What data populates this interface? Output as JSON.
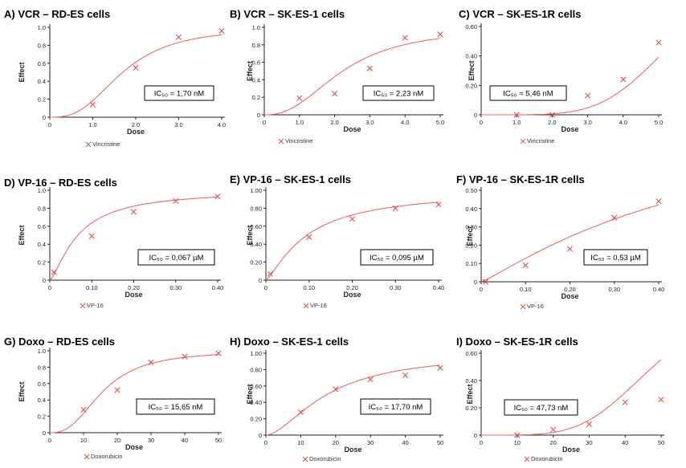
{
  "style": {
    "curve_color": "#e86a6a",
    "marker_color": "#e05050",
    "axis_color": "#222222"
  },
  "chart_data": [
    {
      "type": "scatter",
      "title": "A)   VCR – RD-ES cells",
      "xlabel": "Dose",
      "ylabel": "Effect",
      "xticks": [
        "0",
        "1.0",
        "2.0",
        "3.0",
        "4.0"
      ],
      "yticks": [
        "0",
        "0.2",
        "0.4",
        "0.6",
        "0.8",
        "1.0"
      ],
      "xlim": [
        0,
        4
      ],
      "ylim": [
        0,
        1
      ],
      "series": [
        {
          "name": "Vincristine",
          "x": [
            1,
            2,
            3,
            4
          ],
          "y": [
            0.14,
            0.55,
            0.89,
            0.96
          ],
          "curve": {
            "ic50": 1.7,
            "hill": 2.8,
            "top": 1
          }
        }
      ],
      "annotation": "IC₅₀ = 1,70 nM"
    },
    {
      "type": "scatter",
      "title": "B)   VCR – SK-ES-1 cells",
      "xlabel": "Dose",
      "ylabel": "Effect",
      "xticks": [
        "0",
        "1.0",
        "2.0",
        "3.0",
        "4.0",
        "5.0"
      ],
      "yticks": [
        "0",
        "0.2",
        "0.4",
        "0.6",
        "0.8",
        "1.0"
      ],
      "xlim": [
        0,
        5
      ],
      "ylim": [
        0,
        1
      ],
      "series": [
        {
          "name": "Vincristine",
          "x": [
            1,
            2,
            3,
            4,
            5
          ],
          "y": [
            0.19,
            0.24,
            0.53,
            0.88,
            0.92
          ],
          "curve": {
            "ic50": 2.23,
            "hill": 2.4,
            "top": 1
          }
        }
      ],
      "annotation": "IC₅₀ = 2,23 nM"
    },
    {
      "type": "scatter",
      "title": "C)   VCR – SK-ES-1R cells",
      "xlabel": "Dose",
      "ylabel": "Effect",
      "xticks": [
        "0",
        "1.0",
        "2.0",
        "3.0",
        "4.0",
        "5.0"
      ],
      "yticks": [
        "0",
        "0.20",
        "0.40",
        "0.60"
      ],
      "xlim": [
        0,
        5
      ],
      "ylim": [
        0,
        0.6
      ],
      "series": [
        {
          "name": "Vincristine",
          "x": [
            1,
            2,
            3,
            4,
            5
          ],
          "y": [
            0.0,
            0.0,
            0.13,
            0.24,
            0.49
          ],
          "curve": {
            "ic50": 5.46,
            "hill": 5.0,
            "top": 1
          }
        }
      ],
      "annotation": "IC₅₀ = 5,46 nM"
    },
    {
      "type": "scatter",
      "title": "D)   VP-16 – RD-ES cells",
      "xlabel": "Dose",
      "ylabel": "Effect",
      "xticks": [
        "0",
        "0.10",
        "0.20",
        "0.30",
        "0.40"
      ],
      "yticks": [
        "0",
        "0.2",
        "0.4",
        "0.6",
        "0.8",
        "1.0"
      ],
      "xlim": [
        0,
        0.4
      ],
      "ylim": [
        0,
        1
      ],
      "series": [
        {
          "name": "VP-16",
          "x": [
            0.01,
            0.1,
            0.2,
            0.3,
            0.4
          ],
          "y": [
            0.09,
            0.49,
            0.76,
            0.88,
            0.93
          ],
          "curve": {
            "ic50": 0.067,
            "hill": 1.4,
            "top": 1
          }
        }
      ],
      "annotation": "IC₅₀ = 0,067 µM"
    },
    {
      "type": "scatter",
      "title": "E)   VP-16 – SK-ES-1 cells",
      "xlabel": "Dose",
      "ylabel": "Effect",
      "xticks": [
        "0",
        "0.10",
        "0.20",
        "0.30",
        "0.40"
      ],
      "yticks": [
        "0",
        "0.20",
        "0.40",
        "0.60",
        "0.80",
        "1.00"
      ],
      "xlim": [
        0,
        0.4
      ],
      "ylim": [
        0,
        1
      ],
      "series": [
        {
          "name": "VP-16",
          "x": [
            0.01,
            0.1,
            0.2,
            0.3,
            0.4
          ],
          "y": [
            0.07,
            0.48,
            0.68,
            0.8,
            0.84
          ],
          "curve": {
            "ic50": 0.095,
            "hill": 1.3,
            "top": 1
          }
        }
      ],
      "annotation": "IC₅₀ = 0,095 µM"
    },
    {
      "type": "scatter",
      "title": "F)   VP-16 – SK-ES-1R cells",
      "xlabel": "Dose",
      "ylabel": "Effect",
      "xticks": [
        "0",
        "0.10",
        "0.20",
        "0.30",
        "0.40"
      ],
      "yticks": [
        "0",
        "0.10",
        "0.20",
        "0.30",
        "0.40",
        "0.50"
      ],
      "xlim": [
        0,
        0.4
      ],
      "ylim": [
        0,
        0.5
      ],
      "series": [
        {
          "name": "VP-16",
          "x": [
            0.01,
            0.1,
            0.2,
            0.3,
            0.4
          ],
          "y": [
            0.0,
            0.09,
            0.18,
            0.35,
            0.44
          ],
          "curve": {
            "ic50": 0.53,
            "hill": 1.15,
            "top": 1
          }
        }
      ],
      "annotation": "IC₅₀ = 0,53 µM"
    },
    {
      "type": "scatter",
      "title": "G)   Doxo – RD-ES cells",
      "xlabel": "Dose",
      "ylabel": "Effect",
      "xticks": [
        "0",
        "10",
        "20",
        "30",
        "40",
        "50"
      ],
      "yticks": [
        "0",
        "0.2",
        "0.4",
        "0.6",
        "0.8",
        "1.0"
      ],
      "xlim": [
        0,
        50
      ],
      "ylim": [
        0,
        1
      ],
      "series": [
        {
          "name": "Doxorubicin",
          "x": [
            10,
            20,
            30,
            40,
            50
          ],
          "y": [
            0.28,
            0.52,
            0.86,
            0.93,
            0.97
          ],
          "curve": {
            "ic50": 15.65,
            "hill": 2.6,
            "top": 1
          }
        }
      ],
      "annotation": "IC₅₀ = 15,65 nM"
    },
    {
      "type": "scatter",
      "title": "H)   Doxo – SK-ES-1 cells",
      "xlabel": "Dose",
      "ylabel": "Effect",
      "xticks": [
        "0",
        "10",
        "20",
        "30",
        "40",
        "50"
      ],
      "yticks": [
        "0",
        "0.20",
        "0.40",
        "0.60",
        "0.80",
        "1.00"
      ],
      "xlim": [
        0,
        50
      ],
      "ylim": [
        0,
        1
      ],
      "series": [
        {
          "name": "Doxorubicin",
          "x": [
            10,
            20,
            30,
            40,
            50
          ],
          "y": [
            0.28,
            0.56,
            0.68,
            0.73,
            0.82
          ],
          "curve": {
            "ic50": 17.7,
            "hill": 1.7,
            "top": 1
          }
        }
      ],
      "annotation": "IC₅₀ = 17,70 nM"
    },
    {
      "type": "scatter",
      "title": "I)   Doxo – SK-ES-1R cells",
      "xlabel": "Dose",
      "ylabel": "Effect",
      "xticks": [
        "0",
        "10",
        "20",
        "30",
        "40",
        "50"
      ],
      "yticks": [
        "0",
        "0.20",
        "0.40",
        "0.60"
      ],
      "xlim": [
        0,
        50
      ],
      "ylim": [
        0,
        0.6
      ],
      "series": [
        {
          "name": "Doxorubicin",
          "x": [
            10,
            20,
            30,
            40,
            50
          ],
          "y": [
            0.0,
            0.04,
            0.08,
            0.24,
            0.26
          ],
          "curve": {
            "ic50": 47.73,
            "hill": 4.5,
            "top": 1
          }
        }
      ],
      "annotation": "IC₅₀ = 47,73 nM"
    }
  ]
}
